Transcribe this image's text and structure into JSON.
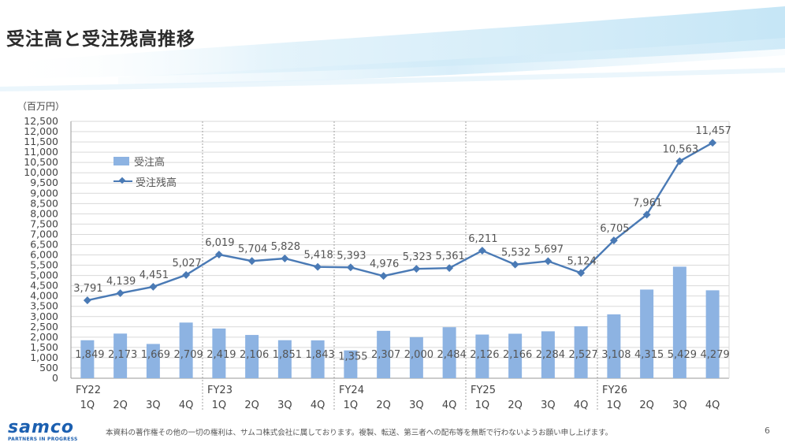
{
  "page": {
    "title": "受注高と受注残高推移",
    "unit_label": "（百万円）",
    "footer_note": "本資料の著作権その他の一切の権利は、サムコ株式会社に属しております。複製、転送、第三者への配布等を無断で行わないようお願い申し上げます。",
    "page_number": "6",
    "logo_text": "samco",
    "logo_tagline": "PARTNERS IN PROGRESS"
  },
  "colors": {
    "bar": "#8db3e2",
    "line": "#4a7ab5",
    "grid": "#d9d9d9",
    "divider": "#8c8c8c"
  },
  "chart_data": {
    "type": "bar",
    "categories": [
      "1Q",
      "2Q",
      "3Q",
      "4Q",
      "1Q",
      "2Q",
      "3Q",
      "4Q",
      "1Q",
      "2Q",
      "3Q",
      "4Q",
      "1Q",
      "2Q",
      "3Q",
      "4Q",
      "1Q",
      "2Q",
      "3Q",
      "4Q"
    ],
    "fiscal_years": [
      "FY22",
      "FY23",
      "FY24",
      "FY25",
      "FY26"
    ],
    "series": [
      {
        "name": "受注高",
        "type": "bar",
        "values": [
          1849,
          2173,
          1669,
          2709,
          2419,
          2106,
          1851,
          1843,
          1355,
          2307,
          2000,
          2484,
          2126,
          2166,
          2284,
          2527,
          3108,
          4315,
          5429,
          4279
        ]
      },
      {
        "name": "受注残高",
        "type": "line",
        "values": [
          3791,
          4139,
          4451,
          5027,
          6019,
          5704,
          5828,
          5418,
          5393,
          4976,
          5323,
          5361,
          6211,
          5532,
          5697,
          5124,
          6705,
          7961,
          10563,
          11457
        ]
      }
    ],
    "ylim": [
      0,
      12500
    ],
    "yticks": [
      "0",
      "500",
      "1,000",
      "1,500",
      "2,000",
      "2,500",
      "3,000",
      "3,500",
      "4,000",
      "4,500",
      "5,000",
      "5,500",
      "6,000",
      "6,500",
      "7,000",
      "7,500",
      "8,000",
      "8,500",
      "9,000",
      "9,500",
      "10,000",
      "10,500",
      "11,000",
      "11,500",
      "12,000",
      "12,500"
    ],
    "grid": true,
    "legend_position": "top-left",
    "ylabel": "（百万円）"
  }
}
